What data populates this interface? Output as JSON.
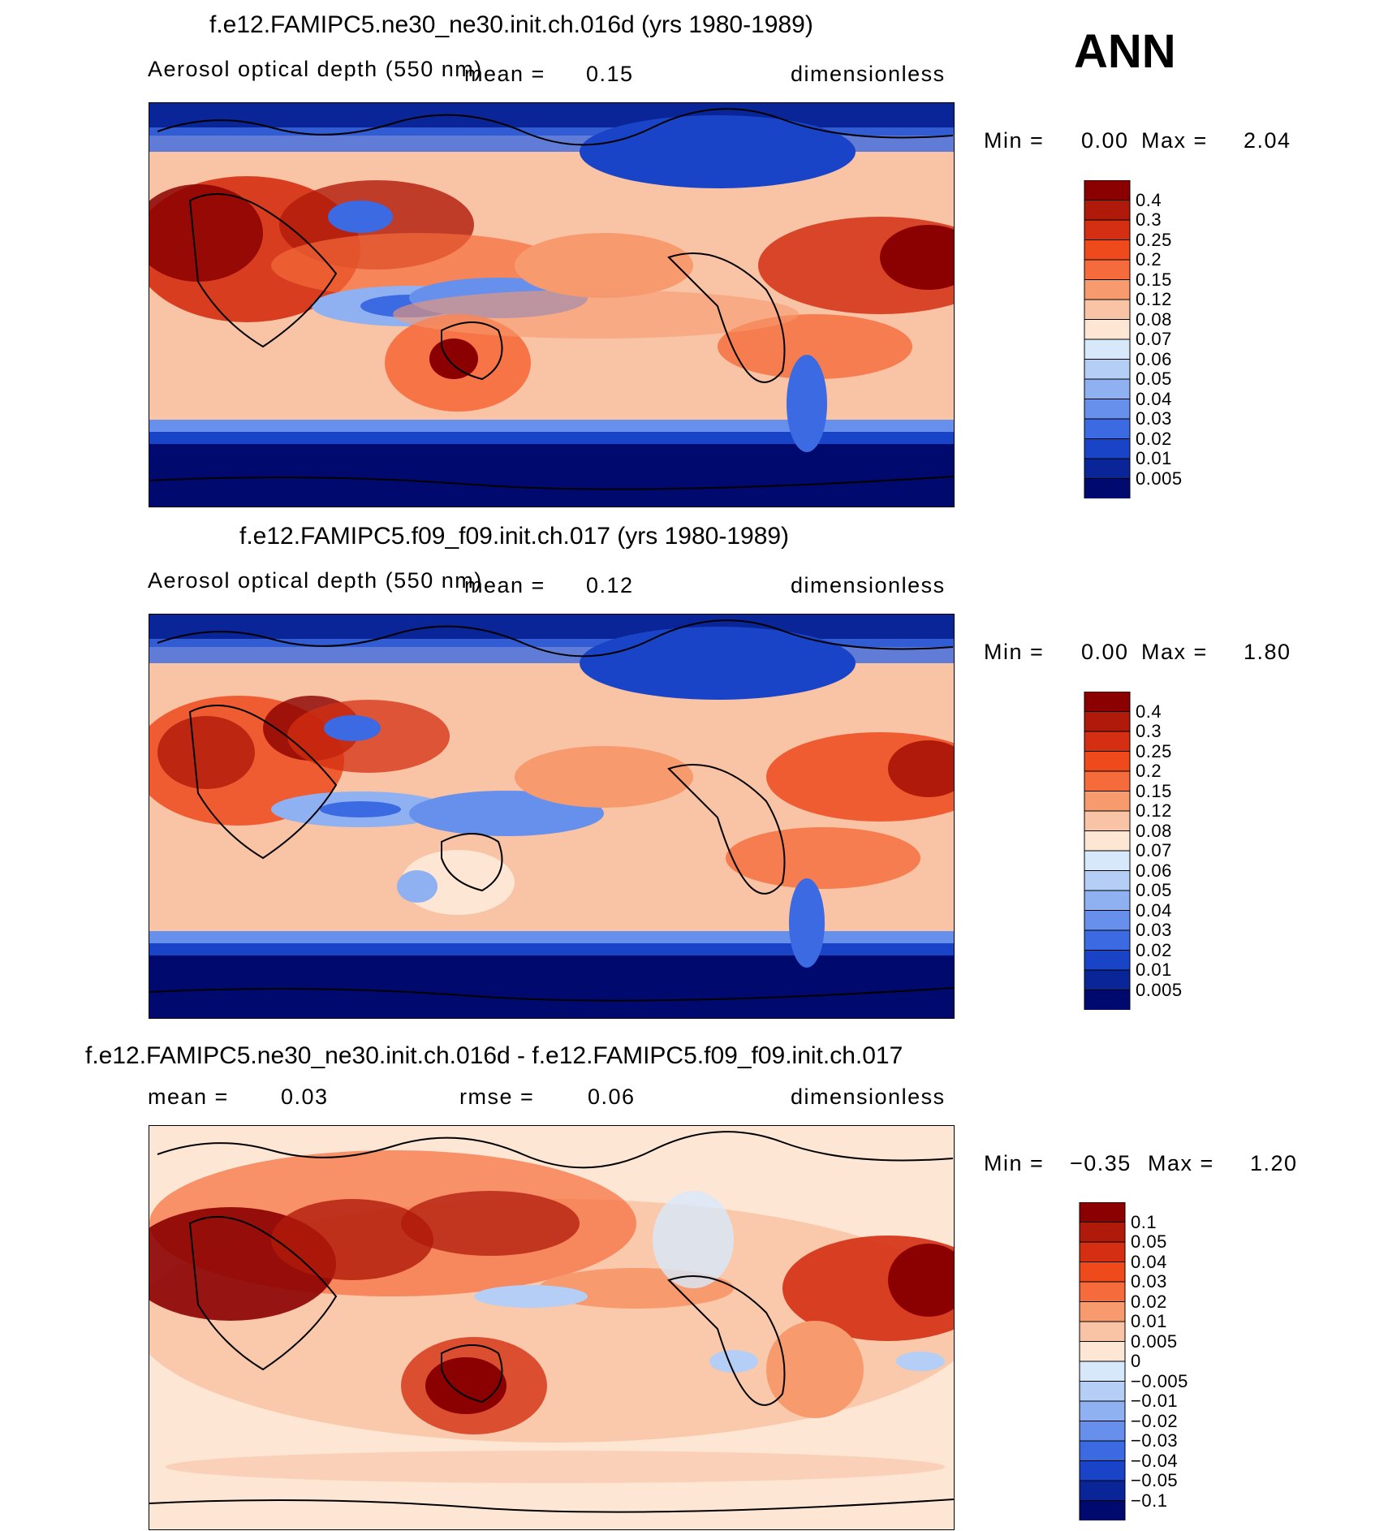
{
  "season": "ANN",
  "chart_data": [
    {
      "type": "heatmap",
      "title": "f.e12.FAMIPC5.ne30_ne30.init.ch.016d (yrs 1980-1989)",
      "variable": "Aerosol optical depth (550 nm)",
      "mean_label": "mean =",
      "mean": "0.15",
      "units": "dimensionless",
      "min_label": "Min =",
      "min": "0.00",
      "max_label": "Max =",
      "max": "2.04",
      "levels": [
        "0.4",
        "0.3",
        "0.25",
        "0.2",
        "0.15",
        "0.12",
        "0.08",
        "0.07",
        "0.06",
        "0.05",
        "0.04",
        "0.03",
        "0.02",
        "0.01",
        "0.005"
      ],
      "colors": [
        "#8b0000",
        "#b01a0a",
        "#d42f12",
        "#ee4a1c",
        "#f56b3b",
        "#f79a6e",
        "#f9c3a5",
        "#fde6d4",
        "#d7e8fb",
        "#b4cef6",
        "#8fb1f2",
        "#6690ec",
        "#3b6ae3",
        "#1a44c8",
        "#0a2597",
        "#000a6e"
      ]
    },
    {
      "type": "heatmap",
      "title": "f.e12.FAMIPC5.f09_f09.init.ch.017 (yrs 1980-1989)",
      "variable": "Aerosol optical depth (550 nm)",
      "mean_label": "mean =",
      "mean": "0.12",
      "units": "dimensionless",
      "min_label": "Min =",
      "min": "0.00",
      "max_label": "Max =",
      "max": "1.80",
      "levels": [
        "0.4",
        "0.3",
        "0.25",
        "0.2",
        "0.15",
        "0.12",
        "0.08",
        "0.07",
        "0.06",
        "0.05",
        "0.04",
        "0.03",
        "0.02",
        "0.01",
        "0.005"
      ],
      "colors": [
        "#8b0000",
        "#b01a0a",
        "#d42f12",
        "#ee4a1c",
        "#f56b3b",
        "#f79a6e",
        "#f9c3a5",
        "#fde6d4",
        "#d7e8fb",
        "#b4cef6",
        "#8fb1f2",
        "#6690ec",
        "#3b6ae3",
        "#1a44c8",
        "#0a2597",
        "#000a6e"
      ]
    },
    {
      "type": "heatmap",
      "title": "f.e12.FAMIPC5.ne30_ne30.init.ch.016d - f.e12.FAMIPC5.f09_f09.init.ch.017",
      "mean_label": "mean =",
      "mean": "0.03",
      "rmse_label": "rmse =",
      "rmse": "0.06",
      "units": "dimensionless",
      "min_label": "Min =",
      "min": "−0.35",
      "max_label": "Max =",
      "max": "1.20",
      "levels": [
        "0.1",
        "0.05",
        "0.04",
        "0.03",
        "0.02",
        "0.01",
        "0.005",
        "0",
        "−0.005",
        "−0.01",
        "−0.02",
        "−0.03",
        "−0.04",
        "−0.05",
        "−0.1"
      ],
      "colors": [
        "#8b0000",
        "#b01a0a",
        "#d42f12",
        "#ee4a1c",
        "#f56b3b",
        "#f79a6e",
        "#f9c3a5",
        "#fde6d4",
        "#d7e8fb",
        "#b4cef6",
        "#8fb1f2",
        "#6690ec",
        "#3b6ae3",
        "#1a44c8",
        "#0a2597",
        "#000a6e"
      ]
    }
  ]
}
